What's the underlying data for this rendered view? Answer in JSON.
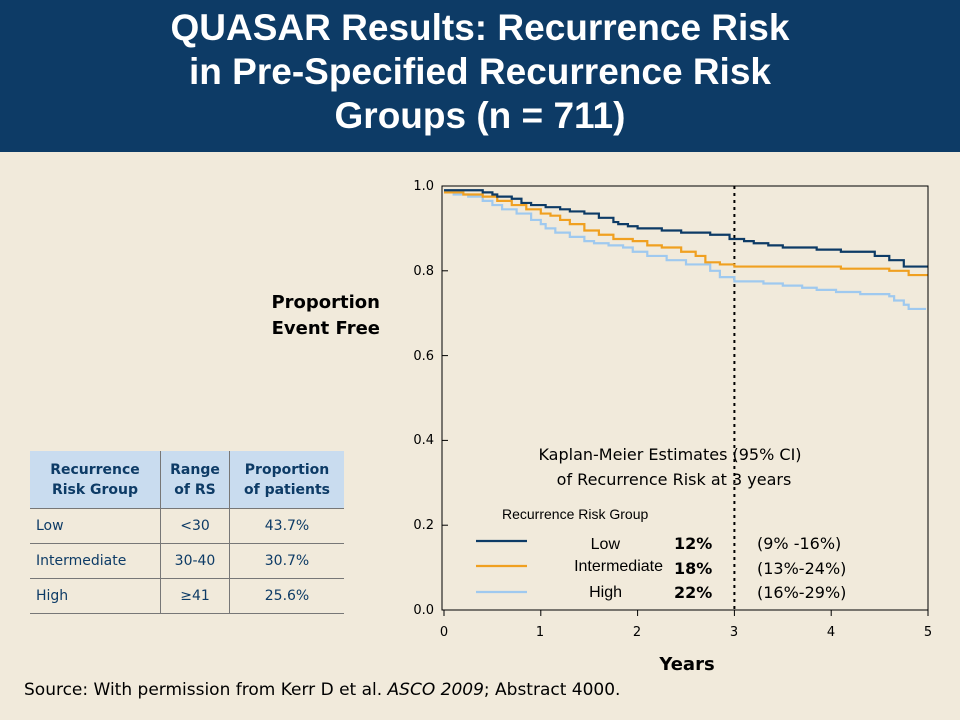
{
  "header": {
    "title_lines": [
      "QUASAR Results: Recurrence Risk",
      "in Pre-Specified Recurrence Risk",
      "Groups (n = 711)"
    ]
  },
  "chart_data": {
    "type": "line",
    "step": true,
    "xlabel": "Years",
    "ylabel_lines": [
      "Proportion",
      "Event Free"
    ],
    "xlim": [
      0,
      5
    ],
    "ylim": [
      0,
      1
    ],
    "x_ticks": [
      "0",
      "1",
      "2",
      "3",
      "4",
      "5"
    ],
    "y_ticks": [
      "0.0",
      "0.2",
      "0.4",
      "0.6",
      "0.8",
      "1.0"
    ],
    "grid": false,
    "reference_line_x": 3,
    "series": [
      {
        "name": "Low",
        "color": "#0d3b66",
        "x": [
          0,
          0.35,
          0.4,
          0.5,
          0.55,
          0.7,
          0.8,
          0.9,
          1.05,
          1.2,
          1.3,
          1.45,
          1.6,
          1.75,
          1.8,
          1.9,
          2.0,
          2.25,
          2.45,
          2.75,
          2.95,
          3.1,
          3.2,
          3.35,
          3.5,
          3.85,
          4.1,
          4.45,
          4.6,
          4.75,
          5.0
        ],
        "y": [
          0.99,
          0.99,
          0.985,
          0.98,
          0.975,
          0.97,
          0.96,
          0.955,
          0.95,
          0.945,
          0.94,
          0.935,
          0.925,
          0.915,
          0.91,
          0.905,
          0.9,
          0.895,
          0.89,
          0.885,
          0.875,
          0.87,
          0.865,
          0.86,
          0.855,
          0.85,
          0.845,
          0.835,
          0.825,
          0.81,
          0.81
        ]
      },
      {
        "name": "Intermediate",
        "color": "#f0a020",
        "x": [
          0,
          0.2,
          0.4,
          0.55,
          0.7,
          0.85,
          1.0,
          1.1,
          1.2,
          1.3,
          1.45,
          1.6,
          1.75,
          1.95,
          2.1,
          2.25,
          2.45,
          2.6,
          2.7,
          2.85,
          3.0,
          3.4,
          4.1,
          4.6,
          4.8,
          5.0
        ],
        "y": [
          0.985,
          0.98,
          0.975,
          0.965,
          0.955,
          0.945,
          0.935,
          0.93,
          0.92,
          0.91,
          0.895,
          0.885,
          0.875,
          0.87,
          0.86,
          0.855,
          0.845,
          0.835,
          0.82,
          0.815,
          0.81,
          0.81,
          0.805,
          0.8,
          0.79,
          0.79
        ]
      },
      {
        "name": "High",
        "color": "#9fc9ef",
        "x": [
          0,
          0.1,
          0.25,
          0.4,
          0.5,
          0.6,
          0.75,
          0.9,
          1.0,
          1.05,
          1.15,
          1.3,
          1.45,
          1.55,
          1.7,
          1.85,
          1.95,
          2.1,
          2.3,
          2.5,
          2.75,
          2.85,
          3.0,
          3.2,
          3.3,
          3.5,
          3.7,
          3.85,
          4.05,
          4.3,
          4.6,
          4.65,
          4.75,
          4.8,
          4.98
        ],
        "y": [
          0.985,
          0.98,
          0.975,
          0.965,
          0.955,
          0.945,
          0.935,
          0.92,
          0.91,
          0.9,
          0.89,
          0.88,
          0.87,
          0.865,
          0.86,
          0.855,
          0.845,
          0.835,
          0.825,
          0.815,
          0.8,
          0.785,
          0.775,
          0.775,
          0.77,
          0.765,
          0.76,
          0.755,
          0.75,
          0.745,
          0.74,
          0.73,
          0.72,
          0.71,
          0.71
        ]
      }
    ],
    "annotation": {
      "title_lines": [
        "Kaplan-Meier Estimates (95% CI)",
        "of Recurrence Risk at 3 years"
      ],
      "legend_title": "Recurrence Risk Group",
      "rows": [
        {
          "label": "Low",
          "estimate": "12%",
          "ci": "(9% -16%)"
        },
        {
          "label": "Intermediate",
          "estimate": "18%",
          "ci": "(13%-24%)"
        },
        {
          "label": "High",
          "estimate": "22%",
          "ci": "(16%-29%)"
        }
      ]
    }
  },
  "table": {
    "headers": [
      [
        "Recurrence",
        "Risk Group"
      ],
      [
        "Range",
        "of RS"
      ],
      [
        "Proportion",
        "of patients"
      ]
    ],
    "rows": [
      [
        "Low",
        "<30",
        "43.7%"
      ],
      [
        "Intermediate",
        "30-40",
        "30.7%"
      ],
      [
        "High",
        "≥41",
        "25.6%"
      ]
    ]
  },
  "source": {
    "prefix": "Source: With permission from Kerr D et al. ",
    "journal": "ASCO 2009",
    "suffix": "; Abstract 4000."
  }
}
